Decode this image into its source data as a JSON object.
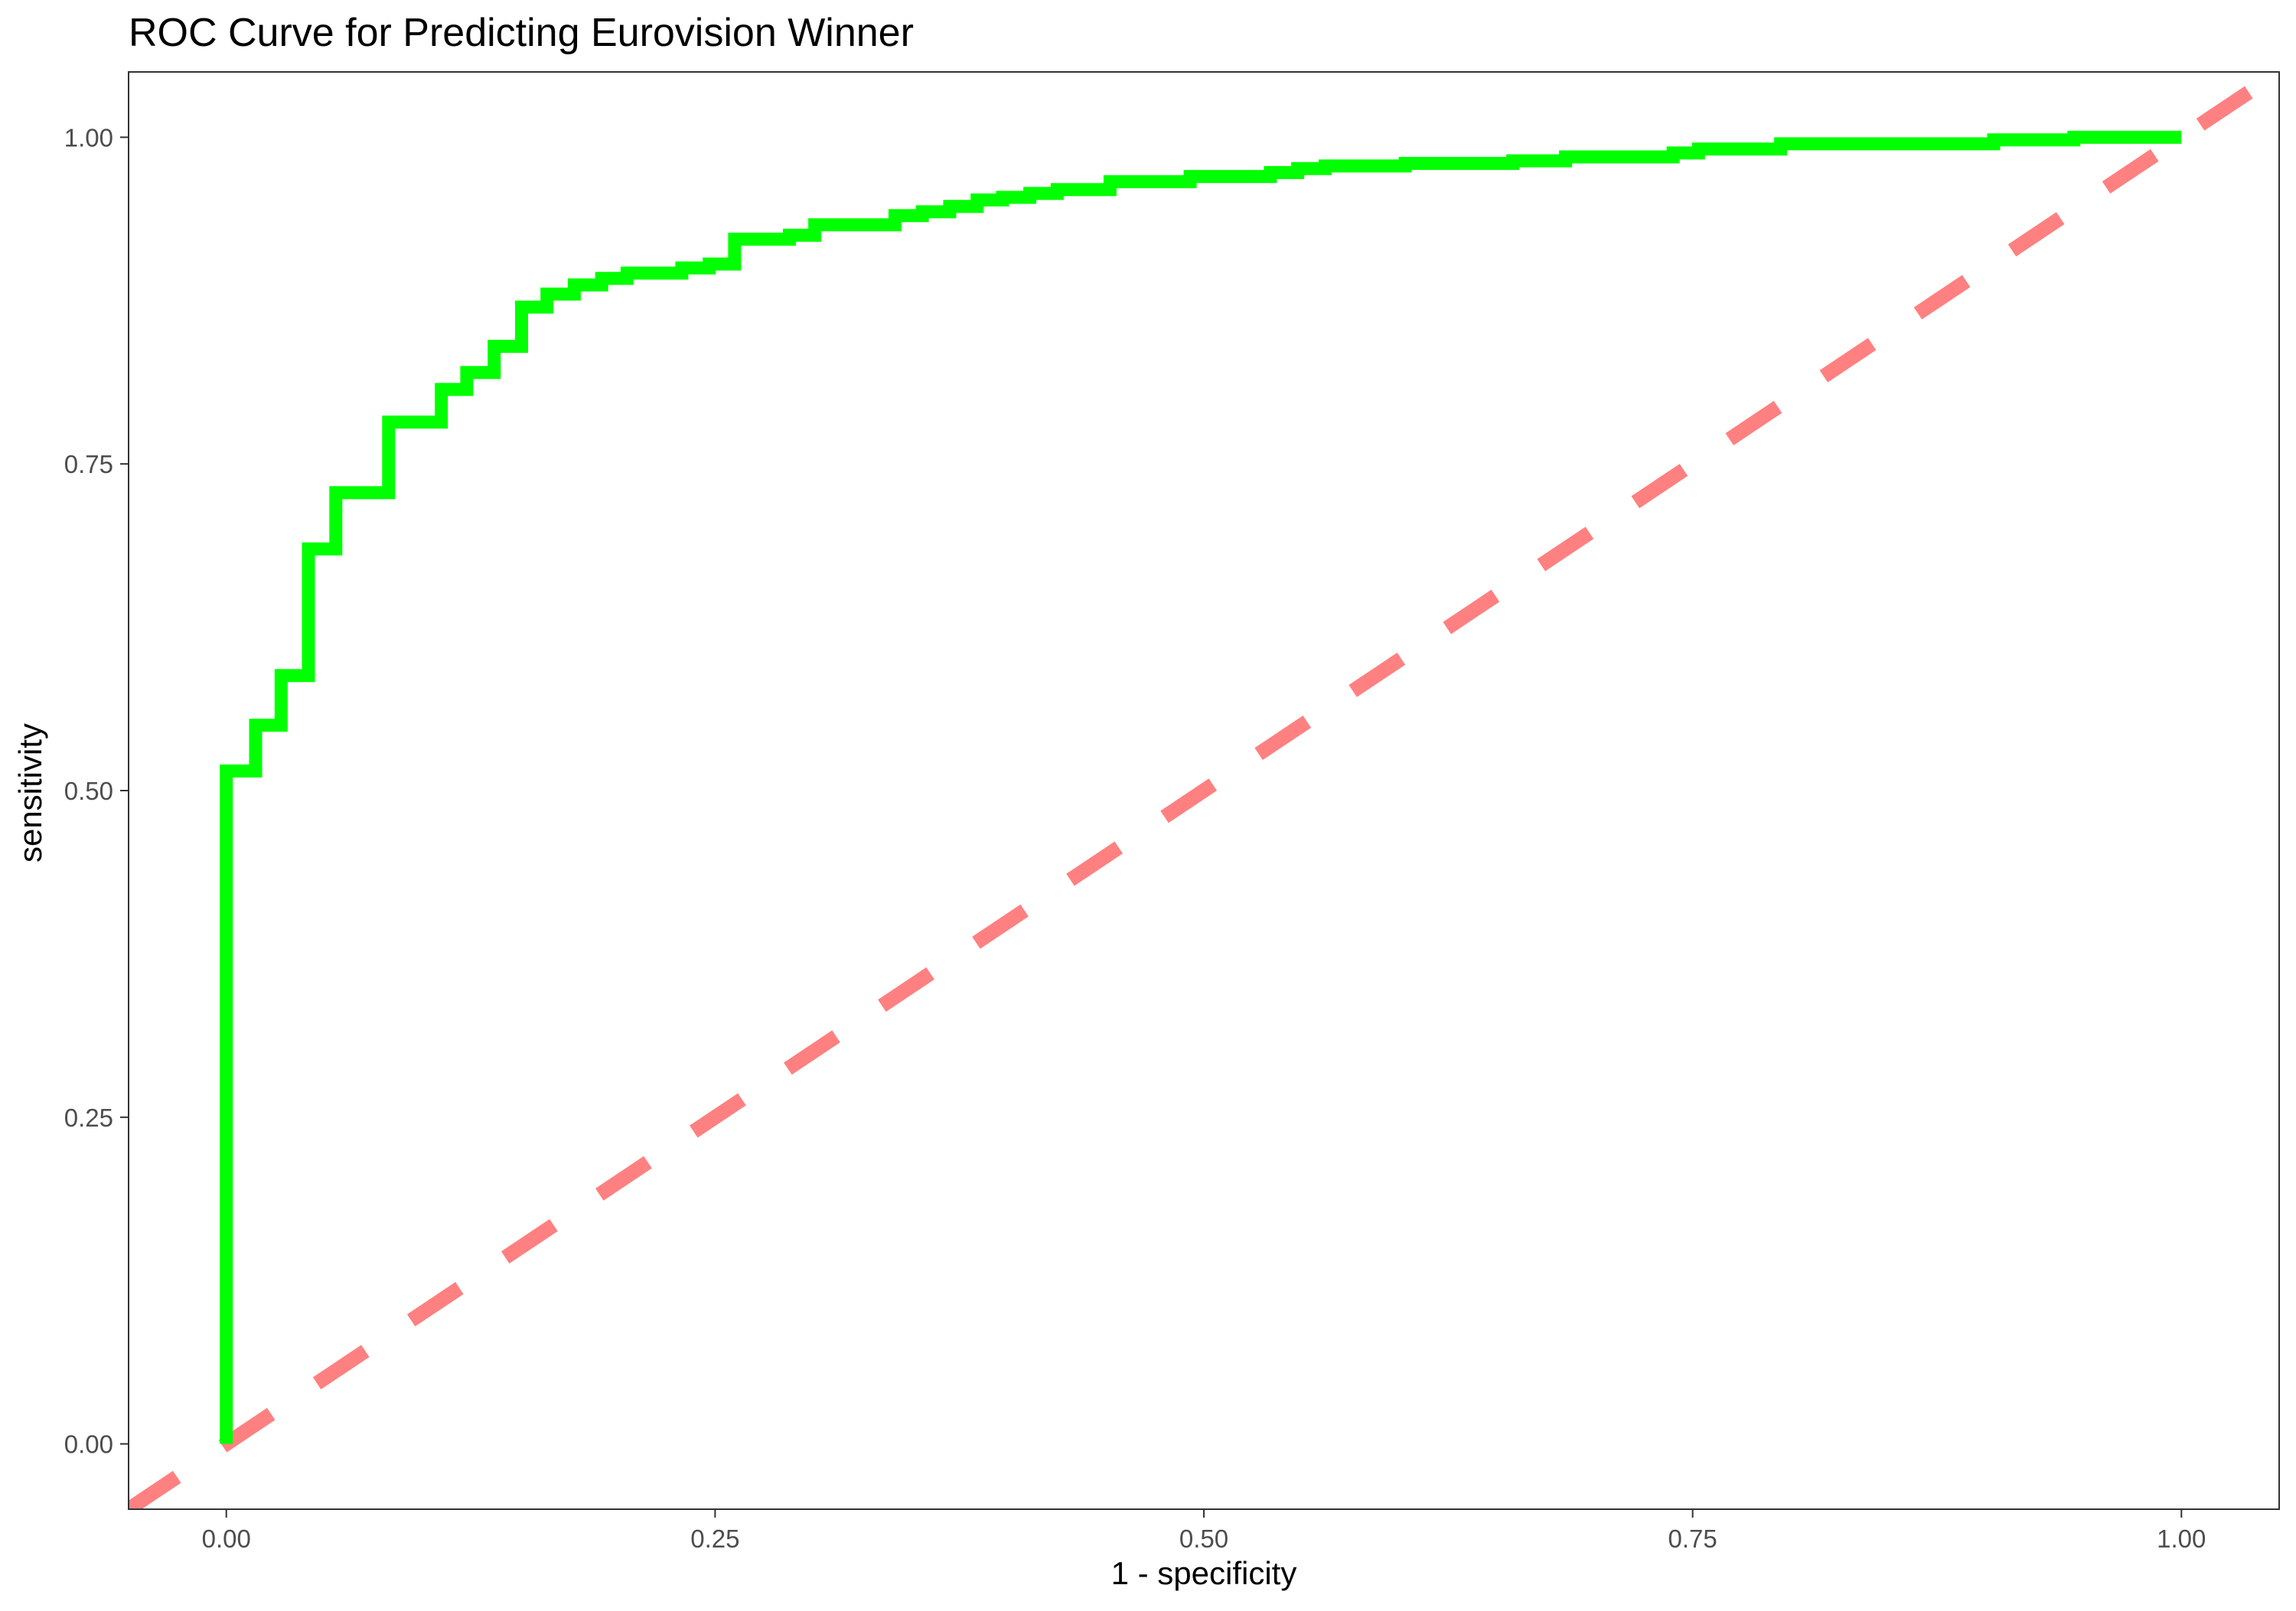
{
  "chart_data": {
    "type": "line",
    "title": "ROC Curve for Predicting Eurovision Winner",
    "xlabel": "1 - specificity",
    "ylabel": "sensitivity",
    "xlim": [
      -0.05,
      1.05
    ],
    "ylim": [
      -0.05,
      1.05
    ],
    "x_ticks": [
      {
        "value": 0,
        "label": "0.00"
      },
      {
        "value": 0.25,
        "label": "0.25"
      },
      {
        "value": 0.5,
        "label": "0.50"
      },
      {
        "value": 0.75,
        "label": "0.75"
      },
      {
        "value": 1,
        "label": "1.00"
      }
    ],
    "y_ticks": [
      {
        "value": 0,
        "label": "0.00"
      },
      {
        "value": 0.25,
        "label": "0.25"
      },
      {
        "value": 0.5,
        "label": "0.50"
      },
      {
        "value": 0.75,
        "label": "0.75"
      },
      {
        "value": 1,
        "label": "1.00"
      }
    ],
    "grid": false,
    "legend": "none",
    "series": [
      {
        "kind": "step",
        "color": "#00ff00",
        "points": [
          [
            0.0,
            0.0
          ],
          [
            0.0,
            0.515
          ],
          [
            0.015,
            0.515
          ],
          [
            0.015,
            0.55
          ],
          [
            0.028,
            0.55
          ],
          [
            0.028,
            0.588
          ],
          [
            0.042,
            0.588
          ],
          [
            0.042,
            0.685
          ],
          [
            0.056,
            0.685
          ],
          [
            0.056,
            0.728
          ],
          [
            0.083,
            0.728
          ],
          [
            0.083,
            0.782
          ],
          [
            0.11,
            0.782
          ],
          [
            0.11,
            0.807
          ],
          [
            0.123,
            0.807
          ],
          [
            0.123,
            0.82
          ],
          [
            0.137,
            0.82
          ],
          [
            0.137,
            0.84
          ],
          [
            0.151,
            0.84
          ],
          [
            0.151,
            0.87
          ],
          [
            0.164,
            0.87
          ],
          [
            0.164,
            0.88
          ],
          [
            0.178,
            0.88
          ],
          [
            0.178,
            0.887
          ],
          [
            0.192,
            0.887
          ],
          [
            0.192,
            0.892
          ],
          [
            0.205,
            0.892
          ],
          [
            0.205,
            0.896
          ],
          [
            0.233,
            0.896
          ],
          [
            0.233,
            0.9
          ],
          [
            0.247,
            0.9
          ],
          [
            0.247,
            0.903
          ],
          [
            0.26,
            0.903
          ],
          [
            0.26,
            0.922
          ],
          [
            0.288,
            0.922
          ],
          [
            0.288,
            0.925
          ],
          [
            0.301,
            0.925
          ],
          [
            0.301,
            0.933
          ],
          [
            0.342,
            0.933
          ],
          [
            0.342,
            0.94
          ],
          [
            0.356,
            0.94
          ],
          [
            0.356,
            0.943
          ],
          [
            0.37,
            0.943
          ],
          [
            0.37,
            0.947
          ],
          [
            0.384,
            0.947
          ],
          [
            0.384,
            0.952
          ],
          [
            0.397,
            0.952
          ],
          [
            0.397,
            0.954
          ],
          [
            0.411,
            0.954
          ],
          [
            0.411,
            0.957
          ],
          [
            0.425,
            0.957
          ],
          [
            0.425,
            0.96
          ],
          [
            0.452,
            0.96
          ],
          [
            0.452,
            0.966
          ],
          [
            0.493,
            0.966
          ],
          [
            0.493,
            0.97
          ],
          [
            0.534,
            0.97
          ],
          [
            0.534,
            0.973
          ],
          [
            0.548,
            0.973
          ],
          [
            0.548,
            0.976
          ],
          [
            0.562,
            0.976
          ],
          [
            0.562,
            0.978
          ],
          [
            0.603,
            0.978
          ],
          [
            0.603,
            0.98
          ],
          [
            0.658,
            0.98
          ],
          [
            0.658,
            0.982
          ],
          [
            0.685,
            0.982
          ],
          [
            0.685,
            0.985
          ],
          [
            0.74,
            0.985
          ],
          [
            0.74,
            0.988
          ],
          [
            0.753,
            0.988
          ],
          [
            0.753,
            0.991
          ],
          [
            0.795,
            0.991
          ],
          [
            0.795,
            0.995
          ],
          [
            0.904,
            0.995
          ],
          [
            0.904,
            0.998
          ],
          [
            0.945,
            0.998
          ],
          [
            0.945,
            1.0
          ],
          [
            1.0,
            1.0
          ]
        ]
      },
      {
        "kind": "reference-line",
        "color": "#ff8080",
        "dashed": true,
        "intercept": 0,
        "slope": 1
      }
    ]
  }
}
